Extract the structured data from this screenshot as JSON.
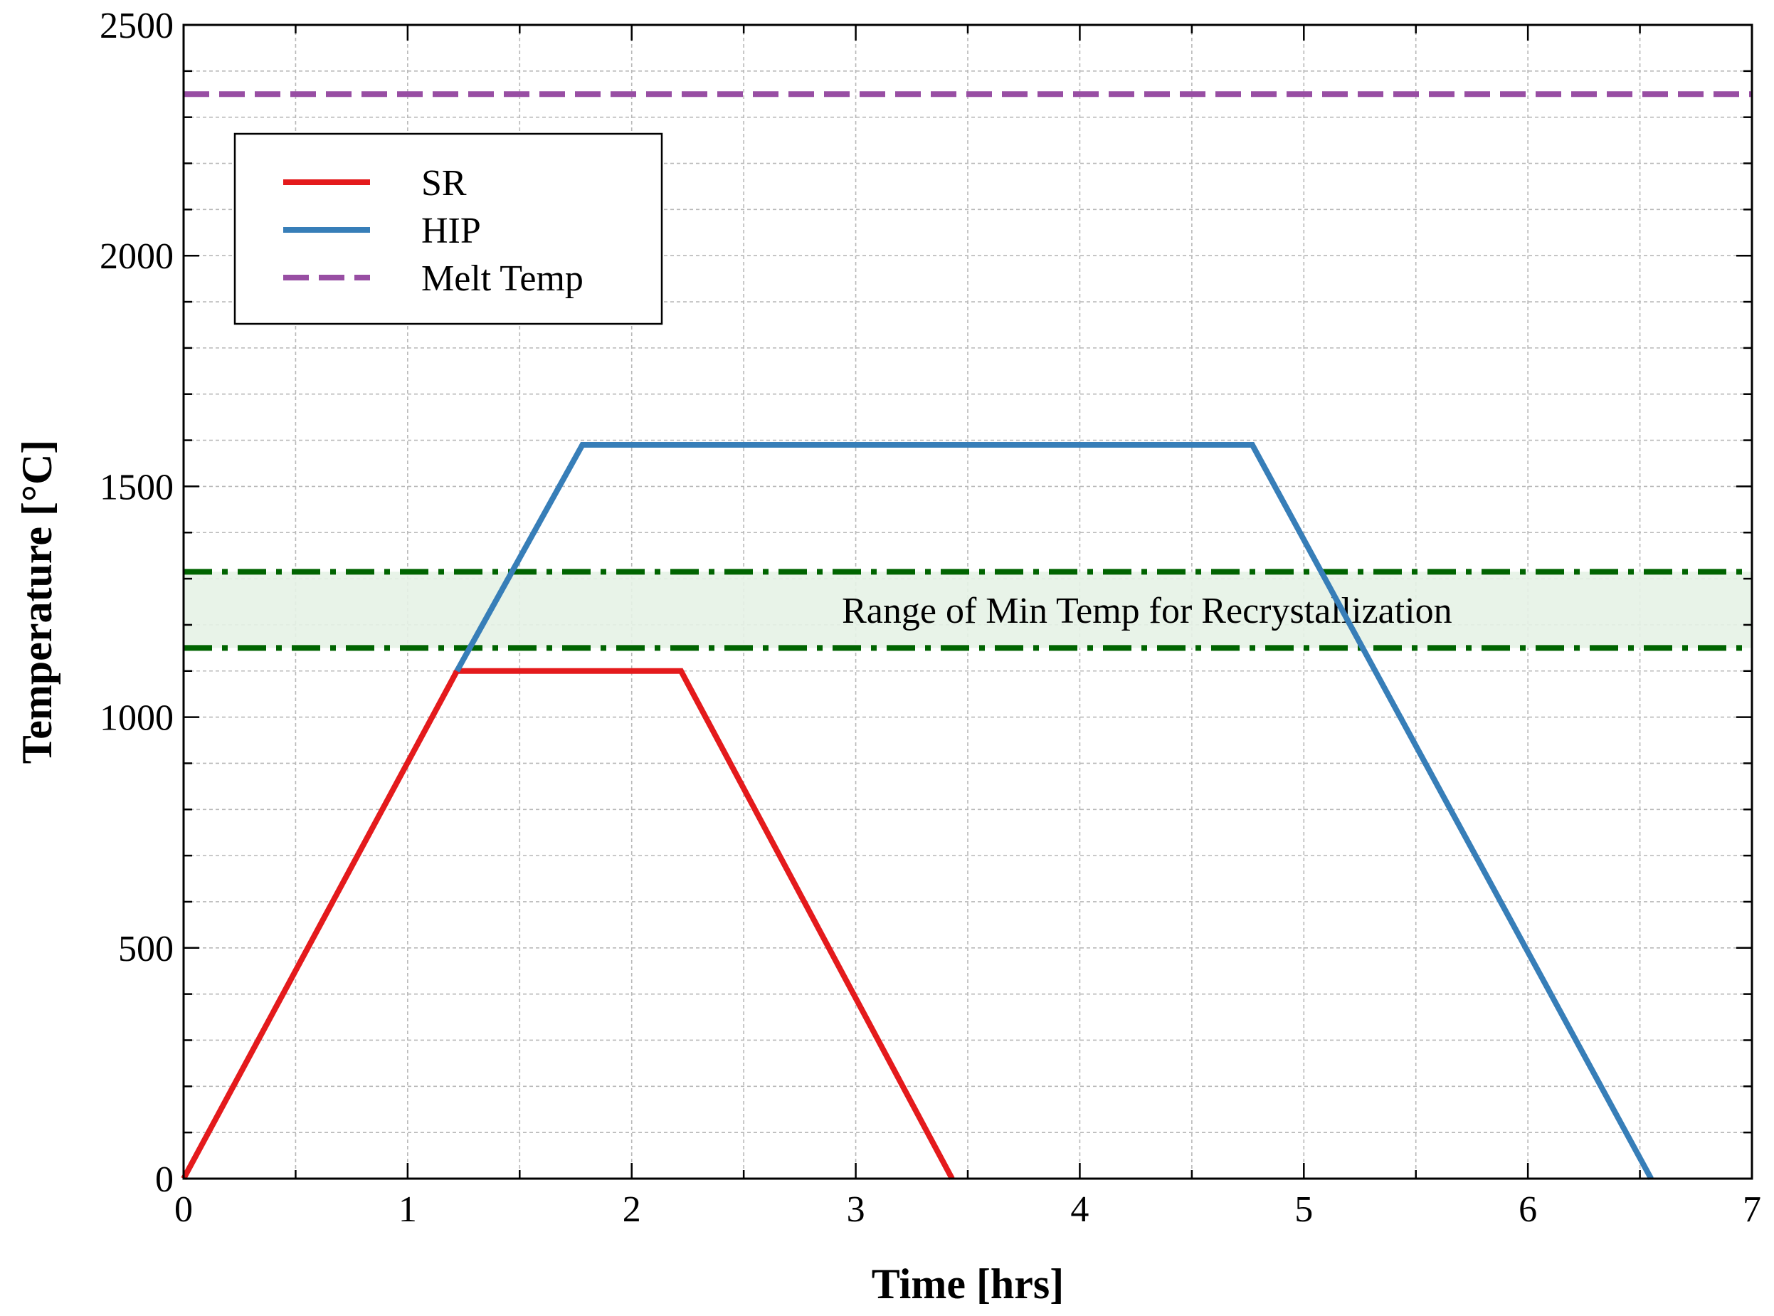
{
  "chart_data": {
    "type": "line",
    "title": "",
    "xlabel": "Time [hrs]",
    "ylabel": "Temperature [°C]",
    "xlim": [
      0,
      7
    ],
    "ylim": [
      0,
      2500
    ],
    "x_ticks": [
      0,
      1,
      2,
      3,
      4,
      5,
      6,
      7
    ],
    "y_ticks": [
      0,
      500,
      1000,
      1500,
      2000,
      2500
    ],
    "x_minor_step": 0.5,
    "y_minor_step": 100,
    "grid": true,
    "legend_position": "top-left",
    "series": [
      {
        "name": "SR",
        "color": "#e41a1c",
        "style": "solid",
        "points": [
          [
            0,
            0
          ],
          [
            1.22,
            1100
          ],
          [
            2.22,
            1100
          ],
          [
            3.43,
            0
          ]
        ]
      },
      {
        "name": "HIP",
        "color": "#377eb8",
        "style": "solid",
        "points": [
          [
            1.22,
            1100
          ],
          [
            1.78,
            1590
          ],
          [
            4.77,
            1590
          ],
          [
            6.55,
            0
          ]
        ]
      },
      {
        "name": "Melt Temp",
        "color": "#984ea3",
        "style": "dashed",
        "points": [
          [
            0,
            2350
          ],
          [
            7,
            2350
          ]
        ]
      }
    ],
    "band": {
      "label": "Range of Min Temp for Recrystallization",
      "low": 1150,
      "high": 1315,
      "line_color": "#006400",
      "fill_color": "#e6f2e6"
    }
  }
}
